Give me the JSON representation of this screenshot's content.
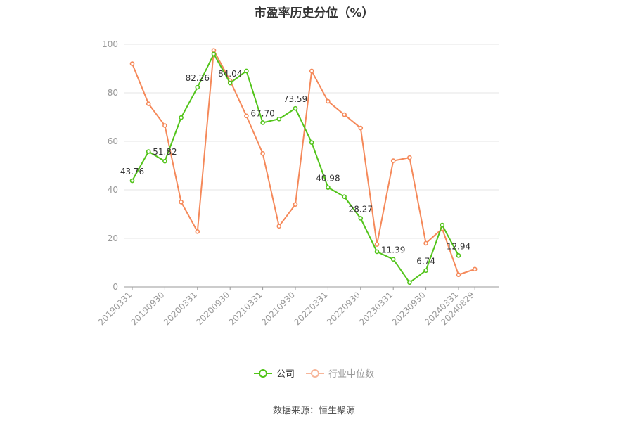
{
  "chart_data": {
    "type": "line",
    "title": "市盈率历史分位（%）",
    "x": [
      "20190331",
      "20190630",
      "20190930",
      "20191231",
      "20200331",
      "20200630",
      "20200930",
      "20201231",
      "20210331",
      "20210630",
      "20210930",
      "20211231",
      "20220331",
      "20220630",
      "20220930",
      "20221231",
      "20230331",
      "20230630",
      "20230930",
      "20231231",
      "20240331",
      "20240829"
    ],
    "x_tick_labels": [
      "20190331",
      "20190930",
      "20200331",
      "20200930",
      "20210331",
      "20210930",
      "20220331",
      "20220930",
      "20230331",
      "20230930",
      "20240331",
      "20240829"
    ],
    "ylim": [
      0,
      100
    ],
    "y_ticks": [
      0,
      20,
      40,
      60,
      80,
      100
    ],
    "grid": true,
    "legend_position": "bottom",
    "series": [
      {
        "name": "公司",
        "color": "#52c41a",
        "values": [
          43.76,
          55.8,
          51.82,
          69.8,
          82.26,
          96.0,
          84.04,
          89.0,
          67.7,
          69.2,
          73.59,
          59.5,
          40.98,
          37.2,
          28.27,
          14.5,
          11.39,
          1.8,
          6.74,
          25.5,
          12.94,
          null
        ],
        "labels": [
          {
            "index": 0,
            "text": "43.76"
          },
          {
            "index": 2,
            "text": "51.82"
          },
          {
            "index": 4,
            "text": "82.26"
          },
          {
            "index": 6,
            "text": "84.04"
          },
          {
            "index": 8,
            "text": "67.70"
          },
          {
            "index": 10,
            "text": "73.59"
          },
          {
            "index": 12,
            "text": "40.98"
          },
          {
            "index": 14,
            "text": "28.27"
          },
          {
            "index": 16,
            "text": "11.39"
          },
          {
            "index": 18,
            "text": "6.74"
          },
          {
            "index": 20,
            "text": "12.94"
          }
        ]
      },
      {
        "name": "行业中位数",
        "color": "#f5895a",
        "values": [
          92.0,
          75.5,
          66.5,
          35.0,
          22.8,
          97.5,
          85.0,
          70.5,
          55.0,
          25.0,
          34.0,
          89.0,
          76.5,
          71.0,
          65.5,
          17.5,
          52.0,
          53.3,
          18.0,
          24.0,
          5.0,
          7.3
        ],
        "labels": []
      }
    ]
  },
  "source_note": "数据来源：恒生聚源"
}
